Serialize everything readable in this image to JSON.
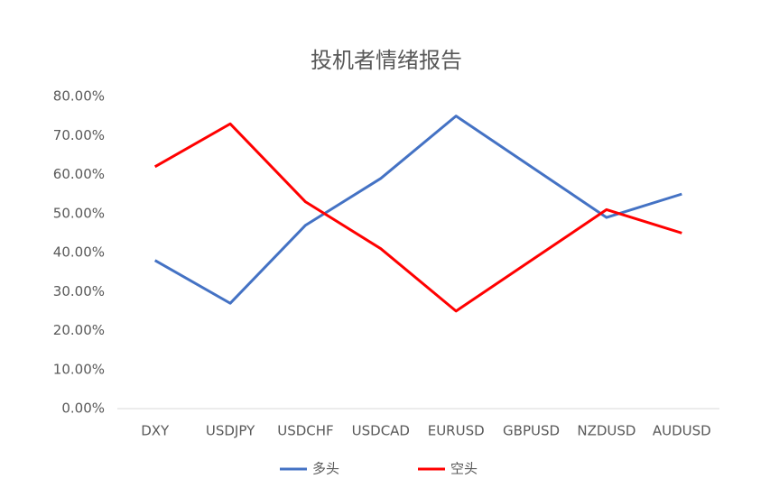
{
  "chart_data": {
    "type": "line",
    "title": "投机者情绪报告",
    "categories": [
      "DXY",
      "USDJPY",
      "USDCHF",
      "USDCAD",
      "EURUSD",
      "GBPUSD",
      "NZDUSD",
      "AUDUSD"
    ],
    "series": [
      {
        "name": "多头",
        "color": "#4472c4",
        "values": [
          38,
          27,
          47,
          59,
          75,
          62,
          49,
          55
        ]
      },
      {
        "name": "空头",
        "color": "#ff0000",
        "values": [
          62,
          73,
          53,
          41,
          25,
          38,
          51,
          45
        ]
      }
    ],
    "ylim": [
      0,
      80
    ],
    "yticks": [
      {
        "value": 0,
        "label": "0.00%"
      },
      {
        "value": 10,
        "label": "10.00%"
      },
      {
        "value": 20,
        "label": "20.00%"
      },
      {
        "value": 30,
        "label": "30.00%"
      },
      {
        "value": 40,
        "label": "40.00%"
      },
      {
        "value": 50,
        "label": "50.00%"
      },
      {
        "value": 60,
        "label": "60.00%"
      },
      {
        "value": 70,
        "label": "70.00%"
      },
      {
        "value": 80,
        "label": "80.00%"
      }
    ],
    "grid": false,
    "legend": "bottom"
  }
}
